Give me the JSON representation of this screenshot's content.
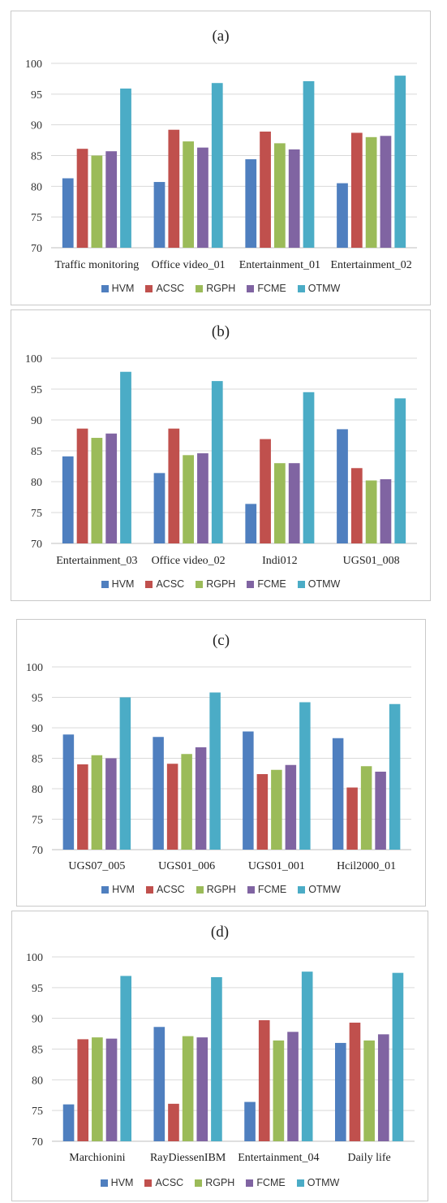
{
  "legend_series": [
    "HVM",
    "ACSC",
    "RGPH",
    "FCME",
    "OTMW"
  ],
  "colors": {
    "HVM": "#4f7fbf",
    "ACSC": "#c0504d",
    "RGPH": "#9bbb59",
    "FCME": "#8064a2",
    "OTMW": "#4bacc6",
    "gridline": "#d9d9d9",
    "axis": "#bfbfbf"
  },
  "chart_data": [
    {
      "type": "bar",
      "title": "(a)",
      "categories": [
        "Traffic monitoring",
        "Office video_01",
        "Entertainment_01",
        "Entertainment_02"
      ],
      "yticks": [
        "70",
        "75",
        "80",
        "85",
        "90",
        "95",
        "100"
      ],
      "ylim": [
        70,
        100
      ],
      "grid": true,
      "legend": "bottom",
      "series": [
        {
          "name": "HVM",
          "values": [
            81.3,
            80.7,
            84.4,
            80.5
          ]
        },
        {
          "name": "ACSC",
          "values": [
            86.1,
            89.2,
            88.9,
            88.7
          ]
        },
        {
          "name": "RGPH",
          "values": [
            85.0,
            87.3,
            87.0,
            88.0
          ]
        },
        {
          "name": "FCME",
          "values": [
            85.7,
            86.3,
            86.0,
            88.2
          ]
        },
        {
          "name": "OTMW",
          "values": [
            95.9,
            96.8,
            97.1,
            98.0
          ]
        }
      ]
    },
    {
      "type": "bar",
      "title": "(b)",
      "categories": [
        "Entertainment_03",
        "Office video_02",
        "Indi012",
        "UGS01_008"
      ],
      "yticks": [
        "70",
        "75",
        "80",
        "85",
        "90",
        "95",
        "100"
      ],
      "ylim": [
        70,
        100
      ],
      "grid": true,
      "legend": "bottom",
      "series": [
        {
          "name": "HVM",
          "values": [
            84.1,
            81.4,
            76.4,
            88.5
          ]
        },
        {
          "name": "ACSC",
          "values": [
            88.6,
            88.6,
            86.9,
            82.2
          ]
        },
        {
          "name": "RGPH",
          "values": [
            87.1,
            84.3,
            83.0,
            80.2
          ]
        },
        {
          "name": "FCME",
          "values": [
            87.8,
            84.6,
            83.0,
            80.4
          ]
        },
        {
          "name": "OTMW",
          "values": [
            97.8,
            96.3,
            94.5,
            93.5
          ]
        }
      ]
    },
    {
      "type": "bar",
      "title": "(c)",
      "categories": [
        "UGS07_005",
        "UGS01_006",
        "UGS01_001",
        "Hcil2000_01"
      ],
      "yticks": [
        "70",
        "75",
        "80",
        "85",
        "90",
        "95",
        "100"
      ],
      "ylim": [
        70,
        100
      ],
      "grid": true,
      "legend": "bottom",
      "series": [
        {
          "name": "HVM",
          "values": [
            88.9,
            88.5,
            89.4,
            88.3
          ]
        },
        {
          "name": "ACSC",
          "values": [
            84.0,
            84.1,
            82.4,
            80.2
          ]
        },
        {
          "name": "RGPH",
          "values": [
            85.5,
            85.7,
            83.1,
            83.7
          ]
        },
        {
          "name": "FCME",
          "values": [
            85.0,
            86.8,
            83.9,
            82.8
          ]
        },
        {
          "name": "OTMW",
          "values": [
            95.0,
            95.8,
            94.2,
            93.9
          ]
        }
      ]
    },
    {
      "type": "bar",
      "title": "(d)",
      "categories": [
        "Marchionini",
        "RayDiessenIBM",
        "Entertainment_04",
        "Daily life"
      ],
      "yticks": [
        "70",
        "75",
        "80",
        "85",
        "90",
        "95",
        "100"
      ],
      "ylim": [
        70,
        100
      ],
      "grid": true,
      "legend": "bottom",
      "series": [
        {
          "name": "HVM",
          "values": [
            76.0,
            88.6,
            76.4,
            86.0
          ]
        },
        {
          "name": "ACSC",
          "values": [
            86.6,
            76.1,
            89.7,
            89.3
          ]
        },
        {
          "name": "RGPH",
          "values": [
            86.9,
            87.1,
            86.4,
            86.4
          ]
        },
        {
          "name": "FCME",
          "values": [
            86.7,
            86.9,
            87.8,
            87.4
          ]
        },
        {
          "name": "OTMW",
          "values": [
            96.9,
            96.7,
            97.6,
            97.4
          ]
        }
      ]
    }
  ]
}
